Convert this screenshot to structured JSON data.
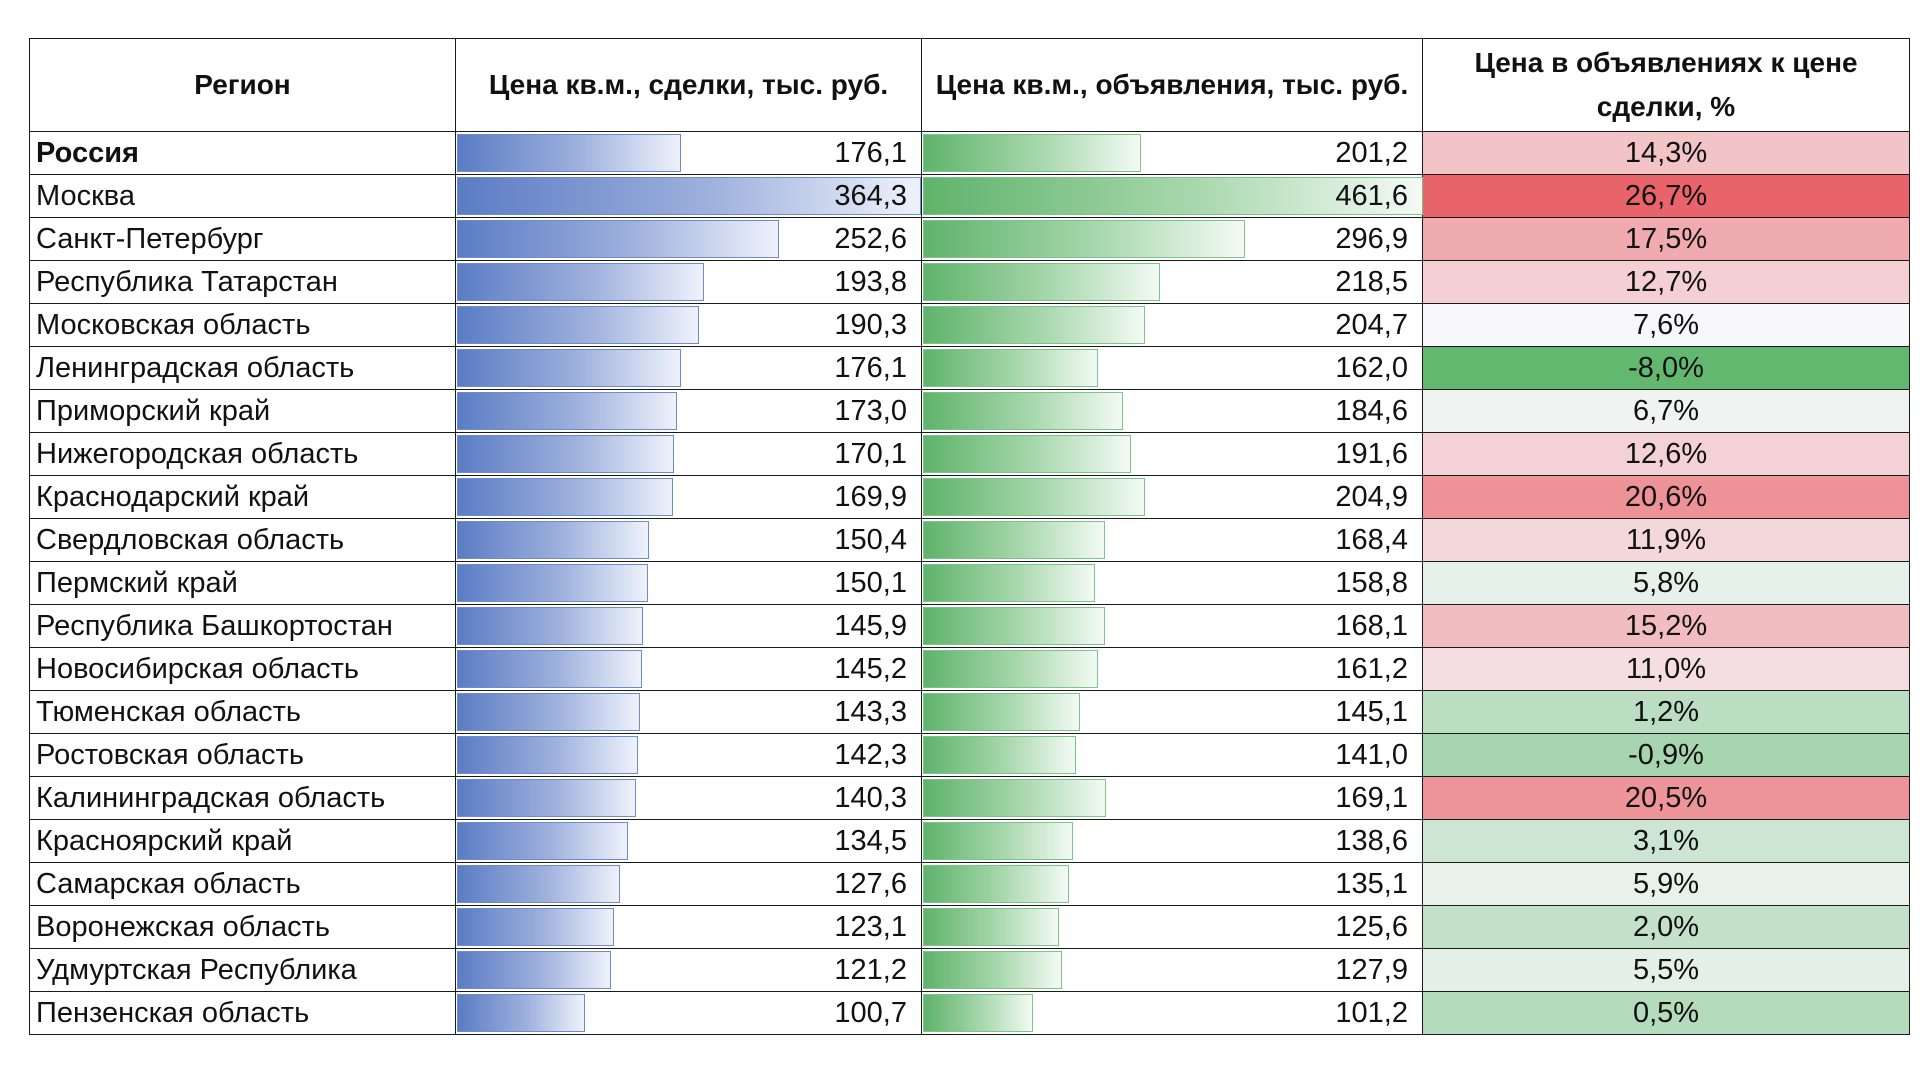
{
  "chart_data": {
    "type": "table",
    "columns": [
      "Регион",
      "Цена кв.м., сделки, тыс. руб.",
      "Цена кв.м., объявления, тыс. руб.",
      "Цена в объявлениях к цене сделки, %"
    ],
    "rows": [
      {
        "region": "Россия",
        "deal": 176.1,
        "deal_label": "176,1",
        "ad": 201.2,
        "ad_label": "201,2",
        "ratio": 14.3,
        "ratio_label": "14,3%",
        "bold": true
      },
      {
        "region": "Москва",
        "deal": 364.3,
        "deal_label": "364,3",
        "ad": 461.6,
        "ad_label": "461,6",
        "ratio": 26.7,
        "ratio_label": "26,7%"
      },
      {
        "region": "Санкт-Петербург",
        "deal": 252.6,
        "deal_label": "252,6",
        "ad": 296.9,
        "ad_label": "296,9",
        "ratio": 17.5,
        "ratio_label": "17,5%"
      },
      {
        "region": "Республика Татарстан",
        "deal": 193.8,
        "deal_label": "193,8",
        "ad": 218.5,
        "ad_label": "218,5",
        "ratio": 12.7,
        "ratio_label": "12,7%"
      },
      {
        "region": "Московская область",
        "deal": 190.3,
        "deal_label": "190,3",
        "ad": 204.7,
        "ad_label": "204,7",
        "ratio": 7.6,
        "ratio_label": "7,6%"
      },
      {
        "region": "Ленинградская область",
        "deal": 176.1,
        "deal_label": "176,1",
        "ad": 162.0,
        "ad_label": "162,0",
        "ratio": -8.0,
        "ratio_label": "-8,0%"
      },
      {
        "region": "Приморский край",
        "deal": 173.0,
        "deal_label": "173,0",
        "ad": 184.6,
        "ad_label": "184,6",
        "ratio": 6.7,
        "ratio_label": "6,7%"
      },
      {
        "region": "Нижегородская область",
        "deal": 170.1,
        "deal_label": "170,1",
        "ad": 191.6,
        "ad_label": "191,6",
        "ratio": 12.6,
        "ratio_label": "12,6%"
      },
      {
        "region": "Краснодарский край",
        "deal": 169.9,
        "deal_label": "169,9",
        "ad": 204.9,
        "ad_label": "204,9",
        "ratio": 20.6,
        "ratio_label": "20,6%"
      },
      {
        "region": "Свердловская область",
        "deal": 150.4,
        "deal_label": "150,4",
        "ad": 168.4,
        "ad_label": "168,4",
        "ratio": 11.9,
        "ratio_label": "11,9%"
      },
      {
        "region": "Пермский край",
        "deal": 150.1,
        "deal_label": "150,1",
        "ad": 158.8,
        "ad_label": "158,8",
        "ratio": 5.8,
        "ratio_label": "5,8%"
      },
      {
        "region": "Республика Башкортостан",
        "deal": 145.9,
        "deal_label": "145,9",
        "ad": 168.1,
        "ad_label": "168,1",
        "ratio": 15.2,
        "ratio_label": "15,2%"
      },
      {
        "region": "Новосибирская область",
        "deal": 145.2,
        "deal_label": "145,2",
        "ad": 161.2,
        "ad_label": "161,2",
        "ratio": 11.0,
        "ratio_label": "11,0%"
      },
      {
        "region": "Тюменская область",
        "deal": 143.3,
        "deal_label": "143,3",
        "ad": 145.1,
        "ad_label": "145,1",
        "ratio": 1.2,
        "ratio_label": "1,2%"
      },
      {
        "region": "Ростовская область",
        "deal": 142.3,
        "deal_label": "142,3",
        "ad": 141.0,
        "ad_label": "141,0",
        "ratio": -0.9,
        "ratio_label": "-0,9%"
      },
      {
        "region": "Калининградская область",
        "deal": 140.3,
        "deal_label": "140,3",
        "ad": 169.1,
        "ad_label": "169,1",
        "ratio": 20.5,
        "ratio_label": "20,5%"
      },
      {
        "region": "Красноярский край",
        "deal": 134.5,
        "deal_label": "134,5",
        "ad": 138.6,
        "ad_label": "138,6",
        "ratio": 3.1,
        "ratio_label": "3,1%"
      },
      {
        "region": "Самарская область",
        "deal": 127.6,
        "deal_label": "127,6",
        "ad": 135.1,
        "ad_label": "135,1",
        "ratio": 5.9,
        "ratio_label": "5,9%"
      },
      {
        "region": "Воронежская область",
        "deal": 123.1,
        "deal_label": "123,1",
        "ad": 125.6,
        "ad_label": "125,6",
        "ratio": 2.0,
        "ratio_label": "2,0%"
      },
      {
        "region": "Удмуртская Республика",
        "deal": 121.2,
        "deal_label": "121,2",
        "ad": 127.9,
        "ad_label": "127,9",
        "ratio": 5.5,
        "ratio_label": "5,5%"
      },
      {
        "region": "Пензенская область",
        "deal": 100.7,
        "deal_label": "100,7",
        "ad": 101.2,
        "ad_label": "101,2",
        "ratio": 0.5,
        "ratio_label": "0,5%"
      }
    ],
    "deal_bar_max": 364.3,
    "ad_bar_max": 461.6,
    "colors": {
      "deal_bar": "#5b7cc4",
      "ad_bar": "#5fb36b",
      "ratio_high": "#e8646a",
      "ratio_mid": "#f8f8fb",
      "ratio_low": "#63b86f"
    }
  }
}
